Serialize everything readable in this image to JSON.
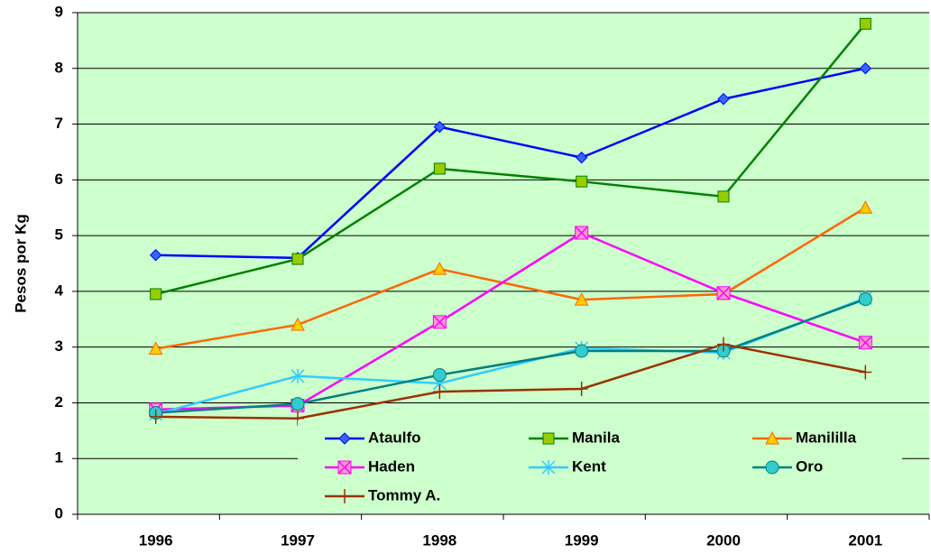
{
  "chart_data": {
    "type": "line",
    "y_label": "Pesos por Kg",
    "categories": [
      "1996",
      "1997",
      "1998",
      "1999",
      "2000",
      "2001"
    ],
    "ylim": [
      0,
      9
    ],
    "yticks": [
      0,
      1,
      2,
      3,
      4,
      5,
      6,
      7,
      8,
      9
    ],
    "grid": true,
    "series": [
      {
        "name": "Ataulfo",
        "color": "#0000ff",
        "marker": "diamond",
        "marker_color": "#3366ff",
        "values": [
          4.65,
          4.6,
          6.95,
          6.4,
          7.45,
          8.0
        ]
      },
      {
        "name": "Manila",
        "color": "#008000",
        "marker": "square",
        "marker_color": "#99cc00",
        "values": [
          3.95,
          4.58,
          6.2,
          5.97,
          5.7,
          8.8
        ]
      },
      {
        "name": "Manililla",
        "color": "#ff6600",
        "marker": "triangle",
        "marker_color": "#ffcc00",
        "values": [
          2.97,
          3.4,
          4.4,
          3.85,
          3.95,
          5.5
        ]
      },
      {
        "name": "Haden",
        "color": "#ff00ff",
        "marker": "xsquare",
        "marker_color": "#ff99cc",
        "values": [
          1.88,
          1.95,
          3.45,
          5.05,
          3.97,
          3.08
        ]
      },
      {
        "name": "Kent",
        "color": "#33ccff",
        "marker": "star",
        "marker_color": "#33ccff",
        "values": [
          1.8,
          2.48,
          2.35,
          2.98,
          2.9,
          3.88
        ]
      },
      {
        "name": "Oro",
        "color": "#008080",
        "marker": "circle",
        "marker_color": "#33cccc",
        "values": [
          1.82,
          1.98,
          2.5,
          2.93,
          2.93,
          3.86
        ]
      },
      {
        "name": "Tommy A.",
        "color": "#993300",
        "marker": "plus",
        "marker_color": "#993300",
        "values": [
          1.75,
          1.72,
          2.2,
          2.25,
          3.05,
          2.55
        ]
      }
    ]
  }
}
